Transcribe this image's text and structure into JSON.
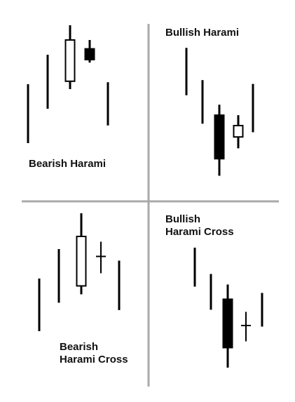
{
  "colors": {
    "background": "#ffffff",
    "divider": "#a9a9a9",
    "candle_stroke": "#000000",
    "bullish_fill": "#ffffff",
    "bearish_fill": "#000000"
  },
  "panels": [
    {
      "id": "bearish-harami",
      "label_lines": [
        "Bearish Harami"
      ],
      "marks": [
        {
          "kind": "line",
          "low": 0.0,
          "high": 0.6
        },
        {
          "kind": "line",
          "low": 0.35,
          "high": 0.9
        },
        {
          "kind": "candle",
          "fill": "white",
          "low": 0.55,
          "open": 0.63,
          "close": 1.05,
          "high": 1.2
        },
        {
          "kind": "candle",
          "fill": "black",
          "low": 0.82,
          "open": 0.96,
          "close": 0.85,
          "high": 1.05
        },
        {
          "kind": "line",
          "low": 0.18,
          "high": 0.62
        }
      ]
    },
    {
      "id": "bullish-harami",
      "label_lines": [
        "Bullish Harami"
      ],
      "marks": [
        {
          "kind": "line",
          "low": 0.92,
          "high": 1.42
        },
        {
          "kind": "line",
          "low": 0.62,
          "high": 1.08
        },
        {
          "kind": "candle",
          "fill": "black",
          "low": 0.07,
          "open": 0.71,
          "close": 0.25,
          "high": 0.82
        },
        {
          "kind": "candle",
          "fill": "white",
          "low": 0.36,
          "open": 0.48,
          "close": 0.6,
          "high": 0.71
        },
        {
          "kind": "line",
          "low": 0.53,
          "high": 1.04
        }
      ]
    },
    {
      "id": "bearish-harami-cross",
      "label_lines": [
        "Bearish",
        "Harami Cross"
      ],
      "marks": [
        {
          "kind": "line",
          "low": 0.0,
          "high": 0.5
        },
        {
          "kind": "line",
          "low": 0.27,
          "high": 0.78
        },
        {
          "kind": "candle",
          "fill": "white",
          "low": 0.35,
          "open": 0.43,
          "close": 0.9,
          "high": 1.12
        },
        {
          "kind": "cross",
          "low": 0.55,
          "level": 0.71,
          "high": 0.85
        },
        {
          "kind": "line",
          "low": 0.2,
          "high": 0.67
        }
      ]
    },
    {
      "id": "bullish-harami-cross",
      "label_lines": [
        "Bullish",
        "Harami Cross"
      ],
      "marks": [
        {
          "kind": "line",
          "low": 0.91,
          "high": 1.28
        },
        {
          "kind": "line",
          "low": 0.69,
          "high": 1.03
        },
        {
          "kind": "candle",
          "fill": "black",
          "low": 0.14,
          "open": 0.79,
          "close": 0.33,
          "high": 0.93
        },
        {
          "kind": "cross",
          "low": 0.39,
          "level": 0.54,
          "high": 0.67
        },
        {
          "kind": "line",
          "low": 0.53,
          "high": 0.85
        }
      ]
    }
  ]
}
